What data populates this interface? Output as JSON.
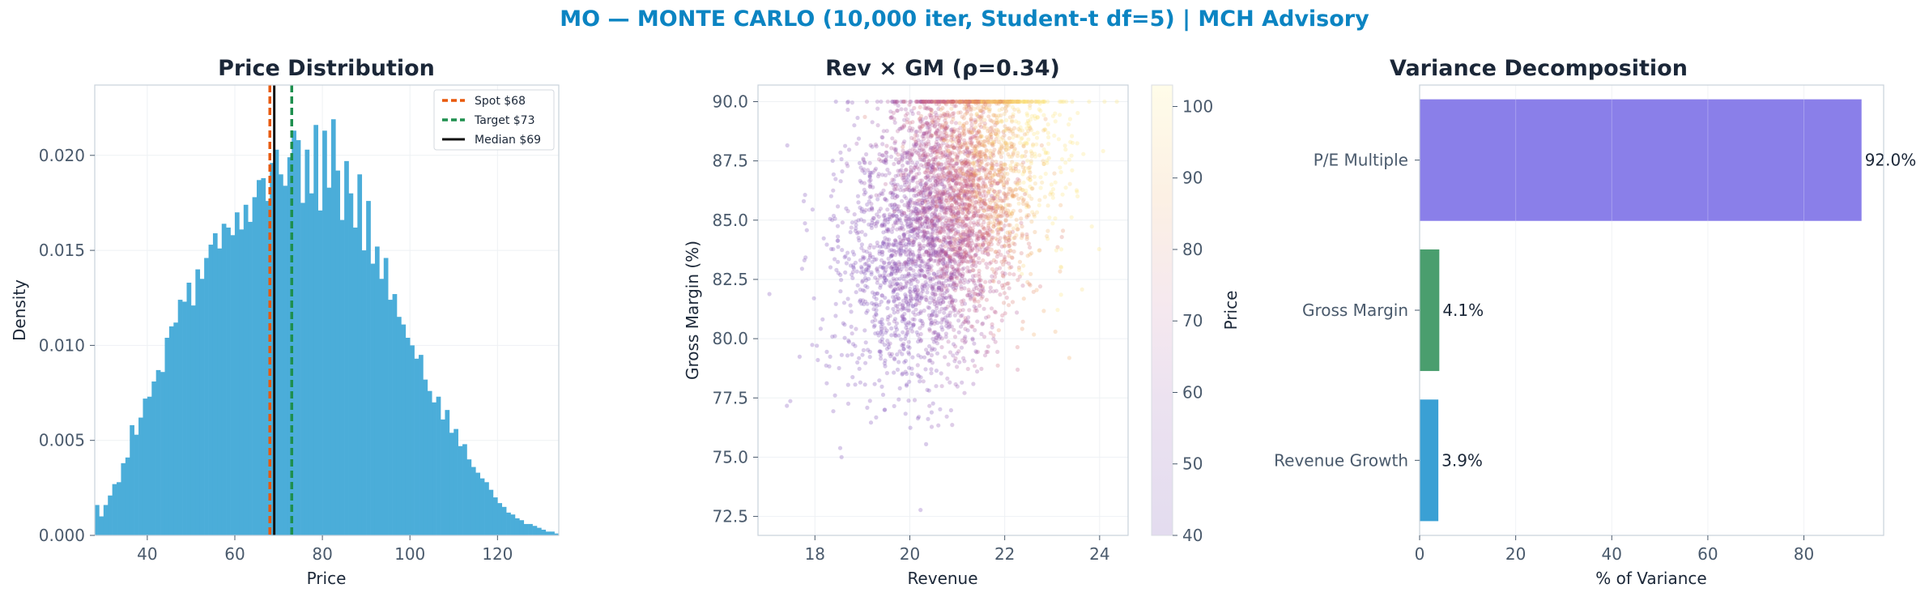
{
  "suptitle": "MO — MONTE CARLO (10,000 iter, Student-t df=5) | MCH Advisory",
  "colors": {
    "accent": "#0b84c2",
    "hist": "#4badd9",
    "spot": "#e8590c",
    "target": "#1e8f4e",
    "median": "#111111",
    "pe": "#8a7fe9",
    "gm": "#4a9e6e",
    "rev": "#3aa0d4"
  },
  "chart_data": [
    {
      "type": "bar",
      "subtype": "histogram",
      "title": "Price Distribution",
      "xlabel": "Price",
      "ylabel": "Density",
      "xlim": [
        28,
        134
      ],
      "ylim": [
        0,
        0.0237
      ],
      "xticks": [
        "40",
        "60",
        "80",
        "100",
        "120"
      ],
      "yticks": [
        "0.000",
        "0.005",
        "0.010",
        "0.015",
        "0.020"
      ],
      "bin_start": 28,
      "bin_width": 1.0,
      "values": [
        0.0016,
        0.001,
        0.0016,
        0.0021,
        0.0027,
        0.0028,
        0.0038,
        0.0041,
        0.0058,
        0.0053,
        0.0062,
        0.0072,
        0.0073,
        0.0081,
        0.0087,
        0.0086,
        0.0104,
        0.011,
        0.0112,
        0.0124,
        0.0123,
        0.0133,
        0.0121,
        0.014,
        0.0135,
        0.0146,
        0.0153,
        0.0159,
        0.0151,
        0.0164,
        0.0162,
        0.0158,
        0.017,
        0.0161,
        0.0174,
        0.0165,
        0.0178,
        0.0187,
        0.0188,
        0.0176,
        0.0196,
        0.0203,
        0.019,
        0.0184,
        0.0199,
        0.0213,
        0.0208,
        0.0175,
        0.0203,
        0.018,
        0.0216,
        0.0171,
        0.0213,
        0.0183,
        0.0219,
        0.0192,
        0.0166,
        0.0197,
        0.018,
        0.0162,
        0.019,
        0.015,
        0.0176,
        0.0143,
        0.0152,
        0.0135,
        0.0146,
        0.0124,
        0.0127,
        0.0115,
        0.0111,
        0.0104,
        0.01,
        0.0093,
        0.0095,
        0.0082,
        0.0076,
        0.007,
        0.0073,
        0.0061,
        0.0066,
        0.0054,
        0.0056,
        0.0047,
        0.0048,
        0.004,
        0.0036,
        0.0033,
        0.003,
        0.0028,
        0.0024,
        0.002,
        0.0017,
        0.0015,
        0.0012,
        0.0011,
        0.0009,
        0.0008,
        0.0006,
        0.0006,
        0.0005,
        0.0004,
        0.0003,
        0.0002,
        0.0002,
        0.0001
      ],
      "lines": [
        {
          "name": "Spot $68",
          "x": 68,
          "style": "dashed",
          "color": "#e8590c"
        },
        {
          "name": "Target $73",
          "x": 73,
          "style": "dashed",
          "color": "#1e8f4e"
        },
        {
          "name": "Median $69",
          "x": 69,
          "style": "solid",
          "color": "#111111"
        }
      ],
      "legend": "top-right",
      "grid": true
    },
    {
      "type": "scatter",
      "title": "Rev × GM (ρ=0.34)",
      "xlabel": "Revenue",
      "ylabel": "Gross Margin (%)",
      "xlim": [
        16.8,
        24.6
      ],
      "ylim": [
        71.7,
        90.7
      ],
      "xticks": [
        "18",
        "20",
        "22",
        "24"
      ],
      "yticks": [
        "72.5",
        "75.0",
        "77.5",
        "80.0",
        "82.5",
        "85.0",
        "87.5",
        "90.0"
      ],
      "n_points": 10000,
      "x_mean": 20.8,
      "x_sd": 1.0,
      "y_mean": 85.5,
      "y_sd": 3.2,
      "y_cap": 90.0,
      "rho": 0.34,
      "color_by": "Price",
      "colorbar": {
        "label": "Price",
        "range": [
          40,
          103
        ],
        "ticks": [
          "40",
          "50",
          "60",
          "70",
          "80",
          "90",
          "100"
        ]
      },
      "grid": true
    },
    {
      "type": "bar",
      "orientation": "horizontal",
      "title": "Variance Decomposition",
      "xlabel": "% of Variance",
      "xlim": [
        0,
        96.6
      ],
      "xticks": [
        "0",
        "20",
        "40",
        "60",
        "80"
      ],
      "categories": [
        "P/E Multiple",
        "Gross Margin",
        "Revenue Growth"
      ],
      "values": [
        92.0,
        4.1,
        3.9
      ],
      "labels": [
        "92.0%",
        "4.1%",
        "3.9%"
      ],
      "grid": true
    }
  ]
}
